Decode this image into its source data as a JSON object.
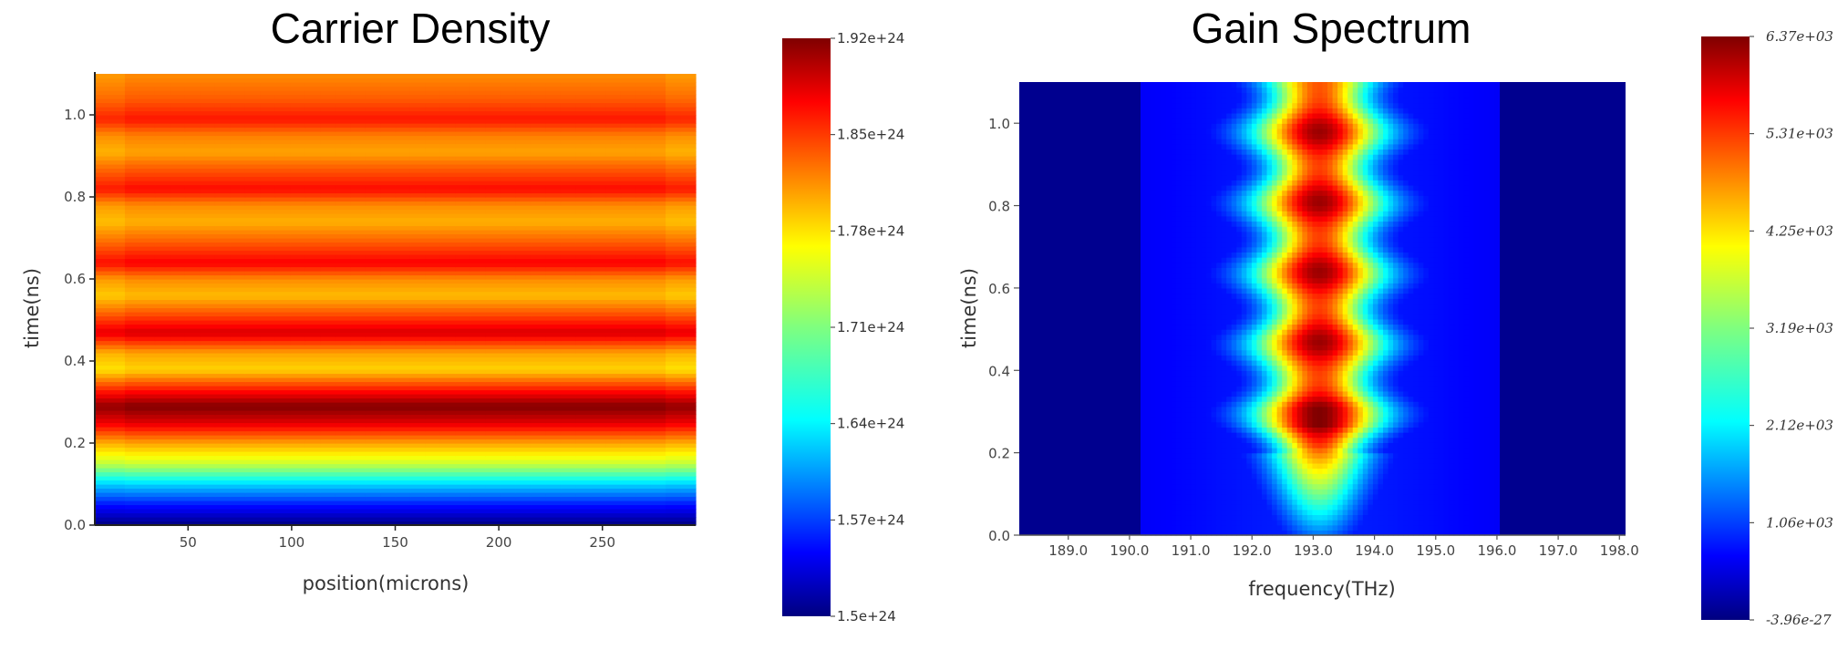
{
  "chart_data": [
    {
      "type": "heatmap",
      "title": "Carrier Density",
      "xlabel": "position(microns)",
      "ylabel": "time(ns)",
      "xlim": [
        5,
        295
      ],
      "ylim": [
        0,
        1.1
      ],
      "xticks": [
        "50",
        "100",
        "150",
        "200",
        "250"
      ],
      "xtick_values": [
        50,
        100,
        150,
        200,
        250
      ],
      "yticks": [
        "0.0",
        "0.2",
        "0.4",
        "0.6",
        "0.8",
        "1.0"
      ],
      "ytick_values": [
        0,
        0.2,
        0.4,
        0.6,
        0.8,
        1.0
      ],
      "colorbar": {
        "min": 1.5e+24,
        "max": 1.92e+24,
        "ticks": [
          "1.92e+24",
          "1.85e+24",
          "1.78e+24",
          "1.71e+24",
          "1.64e+24",
          "1.57e+24",
          "1.5e+24"
        ],
        "colormap": "jet"
      },
      "profile": {
        "time_ns": [
          0.0,
          0.05,
          0.1,
          0.15,
          0.2,
          0.25,
          0.29,
          0.33,
          0.38,
          0.42,
          0.47,
          0.52,
          0.56,
          0.6,
          0.64,
          0.69,
          0.74,
          0.78,
          0.82,
          0.87,
          0.91,
          0.95,
          0.99,
          1.04,
          1.1
        ],
        "density": [
          1.5e+24,
          1.56e+24,
          1.64e+24,
          1.74e+24,
          1.8e+24,
          1.88e+24,
          1.92e+24,
          1.86e+24,
          1.78e+24,
          1.8e+24,
          1.885e+24,
          1.83e+24,
          1.79e+24,
          1.81e+24,
          1.87e+24,
          1.83e+24,
          1.795e+24,
          1.81e+24,
          1.865e+24,
          1.83e+24,
          1.8e+24,
          1.815e+24,
          1.86e+24,
          1.83e+24,
          1.81e+24
        ]
      }
    },
    {
      "type": "heatmap",
      "title": "Gain Spectrum",
      "xlabel": "frequency(THz)",
      "ylabel": "time(ns)",
      "xlim": [
        188.2,
        198.1
      ],
      "ylim": [
        0,
        1.1
      ],
      "xticks": [
        "189.0",
        "190.0",
        "191.0",
        "192.0",
        "193.0",
        "194.0",
        "195.0",
        "196.0",
        "197.0",
        "198.0"
      ],
      "xtick_values": [
        189,
        190,
        191,
        192,
        193,
        194,
        195,
        196,
        197,
        198
      ],
      "yticks": [
        "0.0",
        "0.2",
        "0.4",
        "0.6",
        "0.8",
        "1.0"
      ],
      "ytick_values": [
        0,
        0.2,
        0.4,
        0.6,
        0.8,
        1.0
      ],
      "center_frequency_thz": 193.1,
      "peak_times_ns": [
        0.29,
        0.47,
        0.64,
        0.81,
        0.98
      ],
      "colorbar": {
        "min": -3.96e-27,
        "max": 6370,
        "ticks": [
          "6.37e+03",
          "5.31e+03",
          "4.25e+03",
          "3.19e+03",
          "2.12e+03",
          "1.06e+03",
          "-3.96e-27"
        ],
        "colormap": "jet"
      }
    }
  ]
}
